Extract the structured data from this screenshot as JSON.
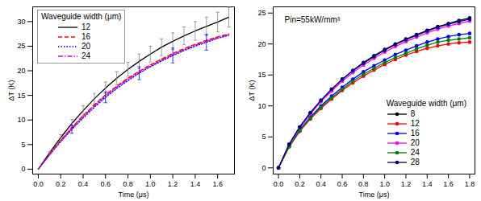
{
  "chart_data": [
    {
      "type": "line",
      "x_label": "Time (μs)",
      "y_label": "ΔT (K)",
      "xlim": [
        -0.05,
        1.75
      ],
      "ylim": [
        -1,
        33
      ],
      "xticks": [
        {
          "value": 0,
          "label": "0.0"
        },
        0.2,
        0.4,
        0.6,
        0.8,
        {
          "value": 1,
          "label": "1.0"
        },
        1.2,
        1.4,
        1.6
      ],
      "yticks": [
        0,
        5,
        10,
        15,
        20,
        25,
        30
      ],
      "legend": "upper left",
      "legend_title": "Waveguide width (μm)",
      "x": [
        0,
        0.1,
        0.2,
        0.3,
        0.4,
        0.5,
        0.6,
        0.7,
        0.8,
        0.9,
        1.0,
        1.1,
        1.2,
        1.3,
        1.4,
        1.5,
        1.6,
        1.7
      ],
      "series": [
        {
          "name": "12",
          "color": "#000000",
          "line_style": "solid",
          "values": [
            0,
            3.3,
            6.4,
            9.3,
            11.9,
            14.3,
            16.5,
            18.5,
            20.3,
            21.9,
            23.4,
            24.8,
            26.0,
            27.1,
            28.1,
            29.0,
            29.9,
            30.9
          ],
          "error": [
            null,
            0.3,
            0.6,
            0.8,
            1.0,
            1.1,
            1.2,
            1.3,
            1.4,
            1.5,
            1.6,
            1.7,
            1.7,
            1.8,
            1.9,
            1.9,
            2.0,
            2.0
          ]
        },
        {
          "name": "16",
          "color": "#ff0000",
          "line_style": "dashed",
          "values": [
            0,
            3.0,
            5.9,
            8.5,
            10.9,
            13.1,
            15.1,
            16.9,
            18.5,
            19.9,
            21.2,
            22.4,
            23.5,
            24.5,
            25.4,
            26.2,
            26.9,
            27.5
          ]
        },
        {
          "name": "20",
          "color": "#0000ff",
          "line_style": "dotted",
          "values": [
            0,
            2.9,
            5.6,
            8.1,
            10.4,
            12.6,
            14.6,
            16.4,
            18.0,
            19.5,
            20.8,
            22.0,
            23.1,
            24.1,
            25.0,
            25.8,
            26.6,
            27.2
          ],
          "error": [
            null,
            null,
            null,
            0.8,
            null,
            null,
            1.1,
            null,
            null,
            1.3,
            null,
            null,
            1.5,
            null,
            null,
            1.6,
            null,
            null
          ]
        },
        {
          "name": "24",
          "color": "#cc00cc",
          "line_style": "dashdot",
          "values": [
            0,
            2.9,
            5.7,
            8.3,
            10.7,
            12.9,
            14.9,
            16.7,
            18.3,
            19.7,
            21.0,
            22.2,
            23.3,
            24.3,
            25.2,
            26.0,
            26.7,
            27.4
          ]
        }
      ]
    },
    {
      "type": "line",
      "x_label": "Time (μs)",
      "y_label": "ΔT (K)",
      "annotation": "Pin=55kW/mm³",
      "xlim": [
        -0.05,
        1.85
      ],
      "ylim": [
        -1,
        26
      ],
      "xticks": [
        {
          "value": 0,
          "label": "0.0"
        },
        0.2,
        0.4,
        0.6,
        0.8,
        {
          "value": 1,
          "label": "1.0"
        },
        1.2,
        1.4,
        1.6,
        1.8
      ],
      "yticks": [
        0,
        5,
        10,
        15,
        20,
        25
      ],
      "legend": "lower right",
      "legend_title": "Waveguide width (μm)",
      "x": [
        0,
        0.1,
        0.2,
        0.3,
        0.4,
        0.5,
        0.6,
        0.7,
        0.8,
        0.9,
        1.0,
        1.1,
        1.2,
        1.3,
        1.4,
        1.5,
        1.6,
        1.7,
        1.8
      ],
      "series": [
        {
          "name": "8",
          "color": "#000000",
          "line_style": "solid",
          "marker": "circle",
          "values": [
            0,
            3.8,
            6.6,
            8.9,
            10.9,
            12.7,
            14.3,
            15.7,
            17.0,
            18.1,
            19.1,
            20.0,
            20.8,
            21.5,
            22.2,
            22.8,
            23.3,
            23.8,
            24.2
          ]
        },
        {
          "name": "12",
          "color": "#ff0000",
          "line_style": "solid",
          "marker": "circle",
          "values": [
            0,
            3.4,
            5.9,
            7.9,
            9.6,
            11.1,
            12.5,
            13.7,
            14.8,
            15.8,
            16.7,
            17.5,
            18.2,
            18.8,
            19.3,
            19.7,
            20.0,
            20.2,
            20.3
          ]
        },
        {
          "name": "16",
          "color": "#0000ff",
          "line_style": "solid",
          "marker": "circle",
          "values": [
            0,
            3.5,
            6.1,
            8.2,
            10.0,
            11.6,
            13.0,
            14.3,
            15.5,
            16.5,
            17.4,
            18.3,
            19.0,
            19.7,
            20.3,
            20.8,
            21.2,
            21.5,
            21.7
          ]
        },
        {
          "name": "20",
          "color": "#ff00ff",
          "line_style": "solid",
          "marker": "circle",
          "values": [
            0,
            3.7,
            6.4,
            8.7,
            10.7,
            12.4,
            14.0,
            15.4,
            16.6,
            17.7,
            18.7,
            19.6,
            20.4,
            21.1,
            21.8,
            22.4,
            22.9,
            23.3,
            23.7
          ]
        },
        {
          "name": "24",
          "color": "#008000",
          "line_style": "solid",
          "marker": "circle",
          "values": [
            0,
            3.4,
            6.0,
            8.0,
            9.8,
            11.3,
            12.7,
            14.0,
            15.1,
            16.1,
            17.0,
            17.8,
            18.5,
            19.2,
            19.8,
            20.3,
            20.6,
            20.8,
            21.0
          ]
        },
        {
          "name": "28",
          "color": "#000080",
          "line_style": "solid",
          "marker": "circle",
          "values": [
            0,
            3.8,
            6.6,
            8.9,
            10.9,
            12.7,
            14.3,
            15.7,
            16.9,
            18.0,
            19.0,
            19.9,
            20.7,
            21.4,
            22.1,
            22.7,
            23.2,
            23.6,
            24.0
          ]
        }
      ]
    }
  ]
}
